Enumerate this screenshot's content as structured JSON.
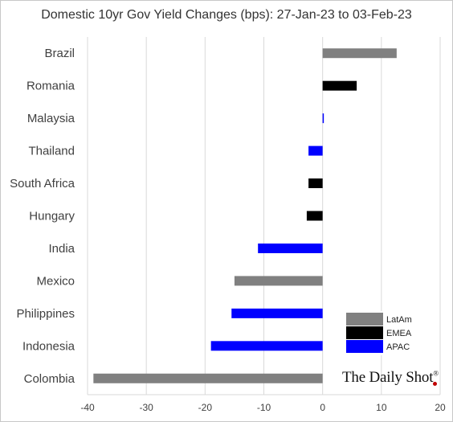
{
  "chart_data": {
    "type": "bar",
    "orientation": "horizontal",
    "title": "Domestic 10yr Gov Yield Changes (bps): 27-Jan-23 to 03-Feb-23",
    "categories": [
      "Brazil",
      "Romania",
      "Malaysia",
      "Thailand",
      "South Africa",
      "Hungary",
      "India",
      "Mexico",
      "Philippines",
      "Indonesia",
      "Colombia"
    ],
    "values": [
      12.6,
      5.8,
      0.2,
      -2.4,
      -2.4,
      -2.7,
      -11.0,
      -15.0,
      -15.5,
      -19.0,
      -39.0
    ],
    "groups": [
      "LatAm",
      "EMEA",
      "APAC",
      "APAC",
      "EMEA",
      "EMEA",
      "APAC",
      "LatAm",
      "APAC",
      "APAC",
      "LatAm"
    ],
    "xlim": [
      -40,
      20
    ],
    "xticks": [
      -40,
      -30,
      -20,
      -10,
      0,
      10,
      20
    ],
    "grid": true,
    "legend": {
      "placement": "bottom-right",
      "entries": [
        {
          "name": "LatAm",
          "color": "#808080"
        },
        {
          "name": "EMEA",
          "color": "#000000"
        },
        {
          "name": "APAC",
          "color": "#0000ff"
        }
      ]
    },
    "colors": {
      "LatAm": "#808080",
      "EMEA": "#000000",
      "APAC": "#0000ff"
    }
  },
  "brand": {
    "name": "The Daily Shot",
    "mark": "®"
  }
}
